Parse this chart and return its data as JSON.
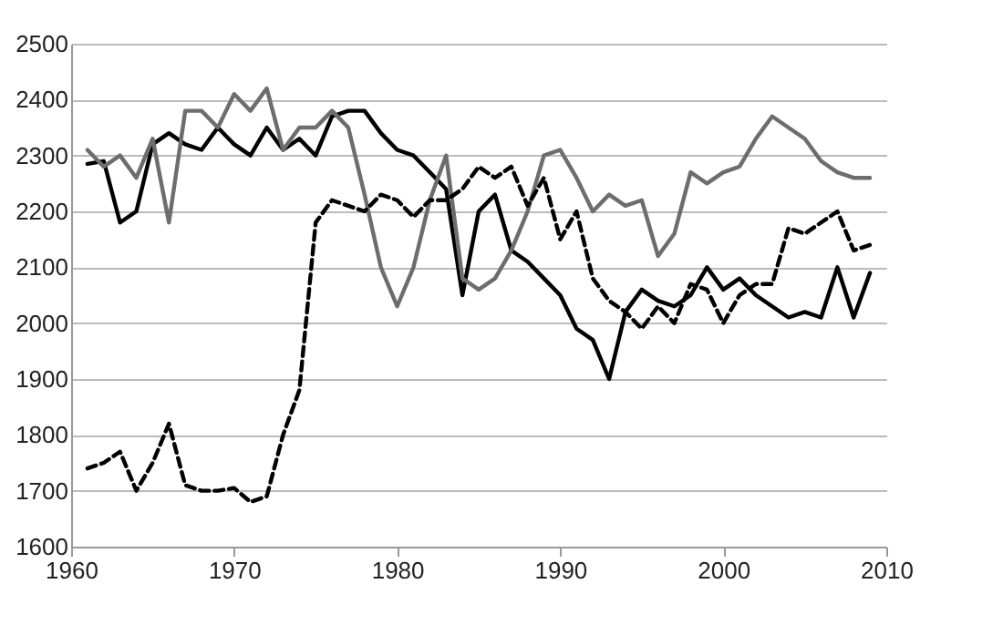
{
  "chart_data": {
    "type": "line",
    "x": [
      1961,
      1962,
      1963,
      1964,
      1965,
      1966,
      1967,
      1968,
      1969,
      1970,
      1971,
      1972,
      1973,
      1974,
      1975,
      1976,
      1977,
      1978,
      1979,
      1980,
      1981,
      1982,
      1983,
      1984,
      1985,
      1986,
      1987,
      1988,
      1989,
      1990,
      1991,
      1992,
      1993,
      1994,
      1995,
      1996,
      1997,
      1998,
      1999,
      2000,
      2001,
      2002,
      2003,
      2004,
      2005,
      2006,
      2007,
      2008,
      2009
    ],
    "series": [
      {
        "color": "#000000",
        "line_style": "solid",
        "values": [
          2285,
          2290,
          2180,
          2200,
          2320,
          2340,
          2320,
          2310,
          2350,
          2320,
          2300,
          2350,
          2310,
          2330,
          2300,
          2370,
          2380,
          2380,
          2340,
          2310,
          2300,
          2270,
          2240,
          2050,
          2200,
          2230,
          2130,
          2110,
          2080,
          2050,
          1990,
          1970,
          1900,
          2020,
          2060,
          2040,
          2030,
          2050,
          2100,
          2060,
          2080,
          2050,
          2030,
          2010,
          2020,
          2010,
          2100,
          2010,
          2090
        ]
      },
      {
        "color": "#6d6d6d",
        "line_style": "solid",
        "values": [
          2310,
          2280,
          2300,
          2260,
          2330,
          2180,
          2380,
          2380,
          2350,
          2410,
          2380,
          2420,
          2310,
          2350,
          2350,
          2380,
          2350,
          2230,
          2100,
          2030,
          2100,
          2220,
          2300,
          2080,
          2060,
          2080,
          2130,
          2200,
          2300,
          2310,
          2260,
          2200,
          2230,
          2210,
          2220,
          2120,
          2160,
          2270,
          2250,
          2270,
          2280,
          2330,
          2370,
          2350,
          2330,
          2290,
          2270,
          2260,
          2260
        ]
      },
      {
        "color": "#000000",
        "line_style": "dashed",
        "values": [
          1740,
          1750,
          1770,
          1700,
          1750,
          1820,
          1710,
          1700,
          1700,
          1705,
          1680,
          1690,
          1800,
          1880,
          2180,
          2220,
          2210,
          2200,
          2230,
          2220,
          2190,
          2220,
          2220,
          2240,
          2280,
          2260,
          2280,
          2210,
          2260,
          2150,
          2200,
          2080,
          2040,
          2020,
          1990,
          2030,
          2000,
          2070,
          2060,
          2000,
          2050,
          2070,
          2070,
          2170,
          2160,
          2180,
          2200,
          2130,
          2140
        ]
      }
    ],
    "xlim": [
      1960,
      2010
    ],
    "xticks": [
      1960,
      1970,
      1980,
      1990,
      2000,
      2010
    ],
    "ylim": [
      1600,
      2500
    ],
    "yticks": [
      1600,
      1700,
      1800,
      1900,
      2000,
      2100,
      2200,
      2300,
      2400,
      2500
    ],
    "grid": "y"
  }
}
